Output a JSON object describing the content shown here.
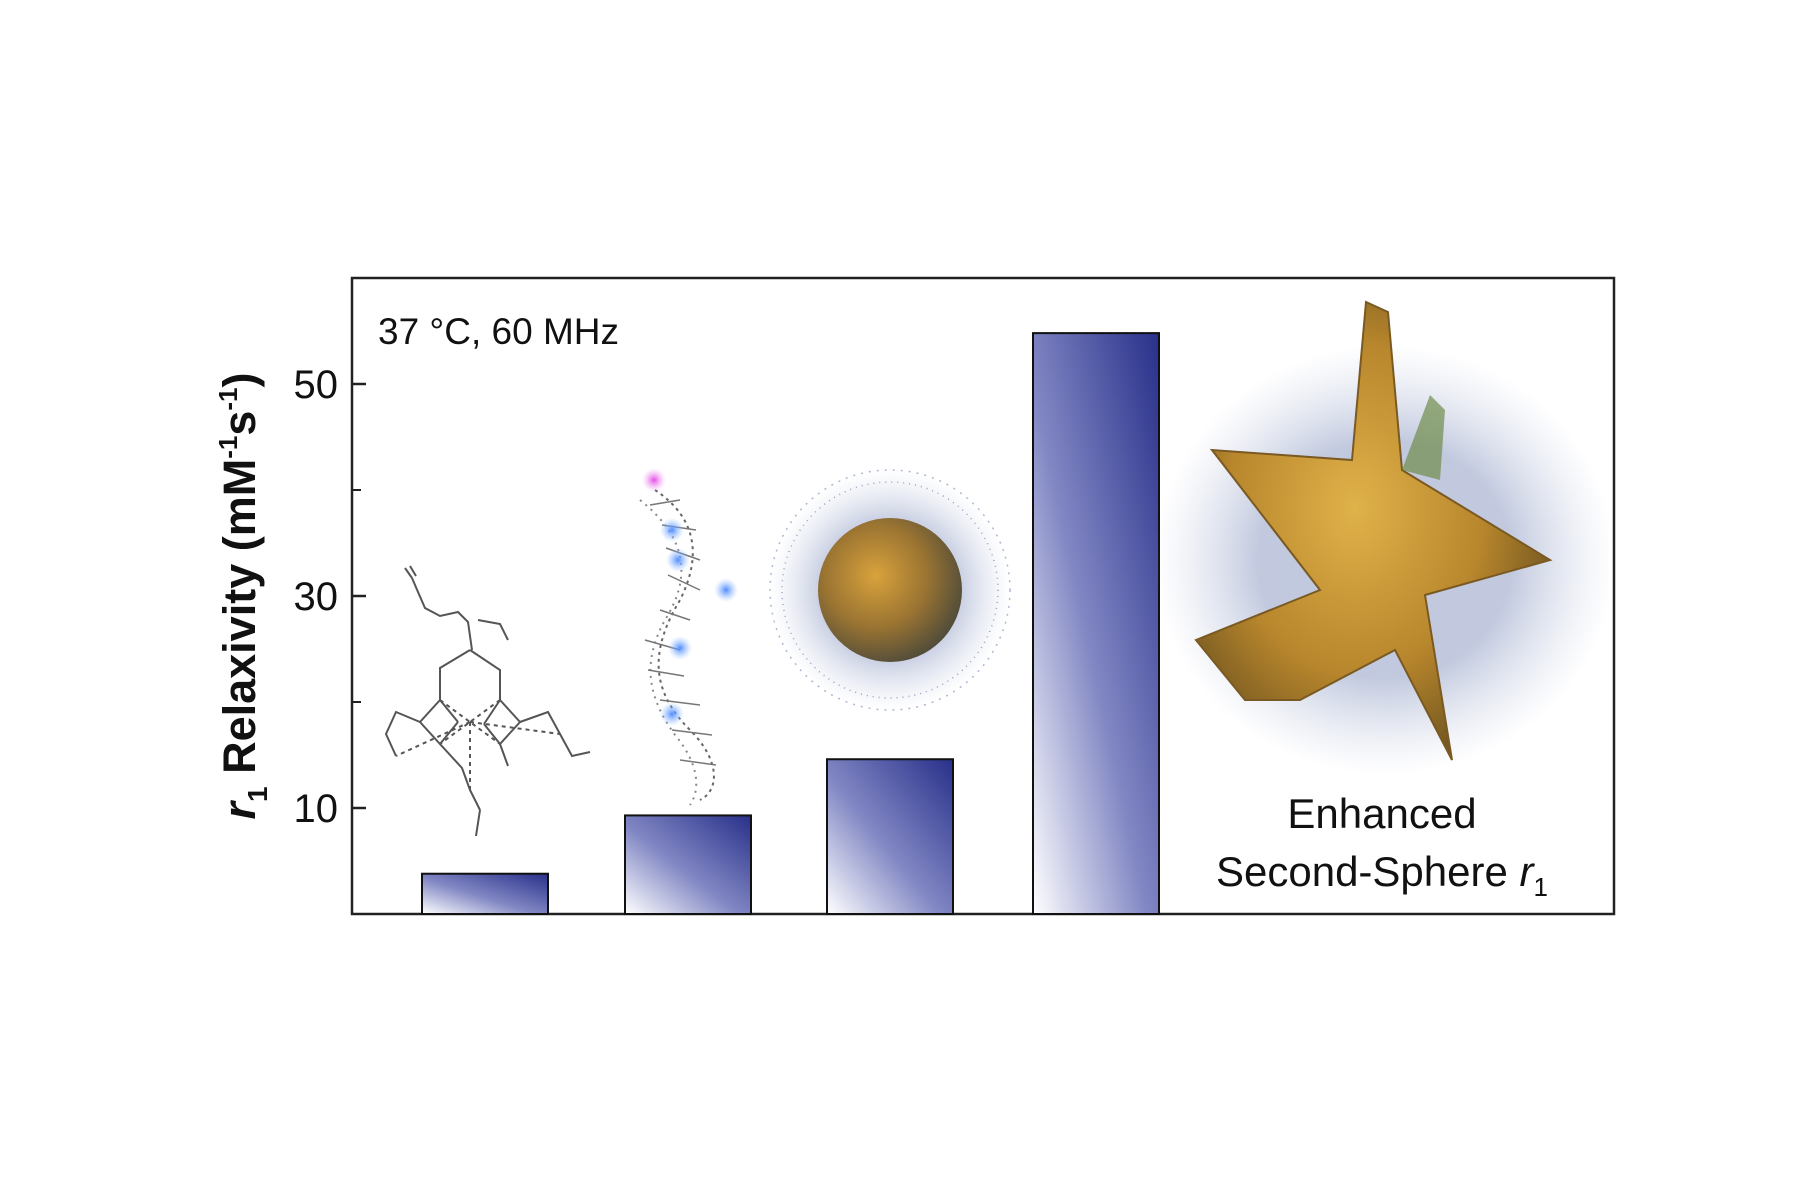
{
  "chart_data": {
    "type": "bar",
    "condition_label": "37 °C, 60 MHz",
    "ylabel_prefix": "r",
    "ylabel_subscript": "1",
    "ylabel_text": " Relaxivity (mM",
    "ylabel_sup1": "-1",
    "ylabel_mid": "s",
    "ylabel_sup2": "-1",
    "ylabel_close": ")",
    "ylim": [
      0,
      60
    ],
    "yticks_major": [
      10,
      30,
      50
    ],
    "yticks_minor": [
      20,
      40
    ],
    "categories": [
      "",
      "",
      "",
      ""
    ],
    "values": [
      3.8,
      9.3,
      14.6,
      54.8
    ],
    "annotation_line1": "Enhanced",
    "annotation_line2": "Second-Sphere ",
    "annotation_r": "r",
    "annotation_sub": "1",
    "grid": false,
    "legend": "none"
  },
  "colors": {
    "bar_dark": "#28308a",
    "bar_light": "#ffffff",
    "axis": "#222222",
    "gold": "#c8962e",
    "molecule": "#555555"
  },
  "illustrations": [
    "gd-chelate-structure",
    "dna-strand",
    "spherical-nanoparticle",
    "gold-nanostar"
  ]
}
